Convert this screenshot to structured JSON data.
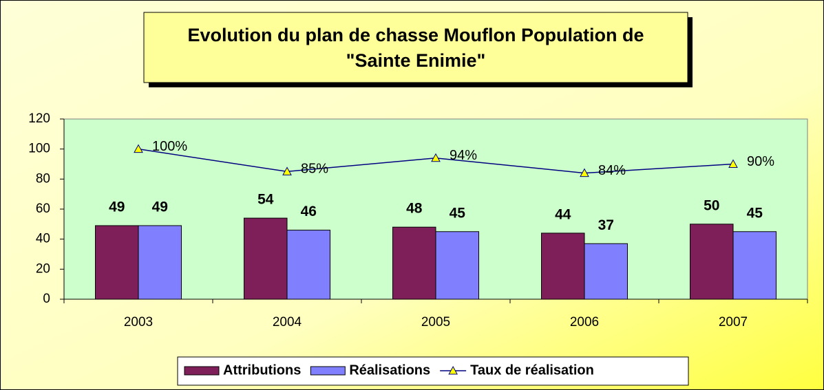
{
  "chart_data": {
    "type": "bar",
    "title": [
      "Evolution du plan de chasse Mouflon Population de",
      "\"Sainte Enimie\""
    ],
    "categories": [
      "2003",
      "2004",
      "2005",
      "2006",
      "2007"
    ],
    "series": [
      {
        "name": "Attributions",
        "color": "#7f1f5a",
        "values": [
          49,
          54,
          48,
          44,
          50
        ]
      },
      {
        "name": "Réalisations",
        "color": "#8080ff",
        "values": [
          49,
          46,
          45,
          37,
          45
        ]
      },
      {
        "name": "Taux de réalisation",
        "type": "line",
        "color": "#000080",
        "marker_color": "#ffff00",
        "values": [
          100,
          85,
          94,
          84,
          90
        ],
        "value_labels": [
          "100%",
          "85%",
          "94%",
          "84%",
          "90%"
        ]
      }
    ],
    "ylim": [
      0,
      120
    ],
    "yticks": [
      0,
      20,
      40,
      60,
      80,
      100,
      120
    ],
    "grid": false,
    "legend": "bottom"
  }
}
